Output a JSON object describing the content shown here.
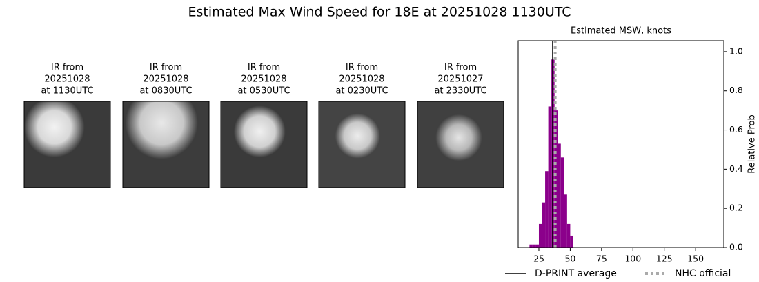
{
  "figure": {
    "title": "Estimated Max Wind Speed for 18E at 20251028 1130UTC"
  },
  "images": [
    {
      "label": [
        "IR from",
        "20251028",
        "at 1130UTC"
      ]
    },
    {
      "label": [
        "IR from",
        "20251028",
        "at 0830UTC"
      ]
    },
    {
      "label": [
        "IR from",
        "20251028",
        "at 0530UTC"
      ]
    },
    {
      "label": [
        "IR from",
        "20251028",
        "at 0230UTC"
      ]
    },
    {
      "label": [
        "IR from",
        "20251027",
        "at 2330UTC"
      ]
    }
  ],
  "chart_data": {
    "type": "histogram",
    "title": "Estimated MSW, knots",
    "ylabel": "Relative Prob",
    "color": "#8b008b",
    "bins": [
      17.5,
      20,
      22.5,
      25,
      27.5,
      30,
      32.5,
      35,
      37.5,
      40,
      42.5,
      45,
      47.5,
      50,
      52.5
    ],
    "values": [
      0.015,
      0.015,
      0.015,
      0.12,
      0.23,
      0.39,
      0.72,
      0.96,
      0.7,
      0.53,
      0.46,
      0.27,
      0.12,
      0.06
    ],
    "xlim": [
      8.5,
      172.5
    ],
    "xticks": [
      25,
      50,
      75,
      100,
      125,
      150
    ],
    "ylim": [
      0,
      1.056
    ],
    "yticks": [
      {
        "value": 0,
        "label": "0.0"
      },
      0.2,
      0.4,
      0.6,
      0.8,
      {
        "value": 1,
        "label": "1.0"
      }
    ],
    "lines": [
      {
        "name": "D-PRINT average",
        "value": 36,
        "color": "#000000",
        "style": "solid"
      },
      {
        "name": "NHC official",
        "value": 38,
        "color": "#aaaaaa",
        "style": "dotted"
      }
    ]
  }
}
